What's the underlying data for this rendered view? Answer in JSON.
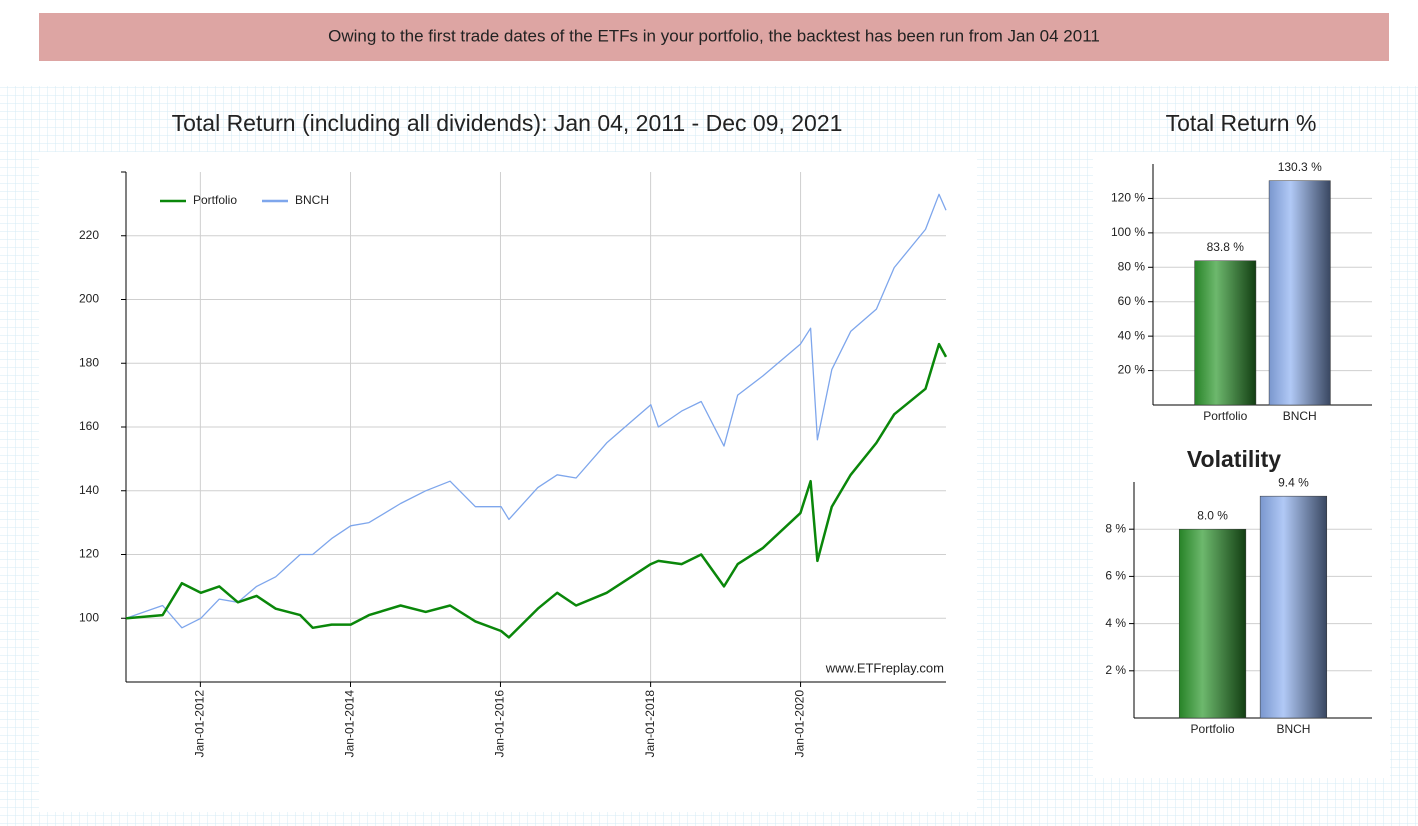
{
  "banner": "Owing to the first trade dates of the ETFs in your portfolio, the backtest has been run from Jan 04 2011",
  "chart_data": [
    {
      "type": "line",
      "title": "Total Return (including all dividends): Jan 04, 2011 - Dec 09, 2021",
      "annotation": "www.ETFreplay.com",
      "x": [
        "2011-01-04",
        "2011-07-01",
        "2011-10-03",
        "2012-01-03",
        "2012-04-02",
        "2012-07-02",
        "2012-10-01",
        "2013-01-02",
        "2013-05-01",
        "2013-07-01",
        "2013-10-01",
        "2014-01-02",
        "2014-04-01",
        "2014-09-02",
        "2015-01-02",
        "2015-05-01",
        "2015-09-01",
        "2016-01-04",
        "2016-02-11",
        "2016-07-01",
        "2016-10-03",
        "2017-01-03",
        "2017-06-01",
        "2018-01-02",
        "2018-02-08",
        "2018-06-01",
        "2018-09-04",
        "2018-12-24",
        "2019-03-01",
        "2019-07-01",
        "2019-12-31",
        "2020-02-19",
        "2020-03-23",
        "2020-06-01",
        "2020-09-01",
        "2021-01-04",
        "2021-04-01",
        "2021-08-31",
        "2021-11-05",
        "2021-12-09"
      ],
      "series": [
        {
          "name": "Portfolio",
          "color": "#0a870a",
          "values": [
            100,
            101,
            111,
            108,
            110,
            105,
            107,
            103,
            101,
            97,
            98,
            98,
            101,
            104,
            102,
            104,
            99,
            96,
            94,
            103,
            108,
            104,
            108,
            117,
            118,
            117,
            120,
            110,
            117,
            122,
            133,
            143,
            118,
            135,
            145,
            155,
            164,
            172,
            186,
            182
          ]
        },
        {
          "name": "BNCH",
          "color": "#7ea6ec",
          "values": [
            100,
            104,
            97,
            100,
            106,
            105,
            110,
            113,
            120,
            120,
            125,
            129,
            130,
            136,
            140,
            143,
            135,
            135,
            131,
            141,
            145,
            144,
            155,
            167,
            160,
            165,
            168,
            154,
            170,
            176,
            186,
            191,
            156,
            178,
            190,
            197,
            210,
            222,
            233,
            228
          ]
        }
      ],
      "xlim": [
        "2011-01-04",
        "2021-12-09"
      ],
      "xticks": [
        {
          "value": "2012-01-01",
          "label": "Jan-01-2012"
        },
        {
          "value": "2014-01-01",
          "label": "Jan-01-2014"
        },
        {
          "value": "2016-01-01",
          "label": "Jan-01-2016"
        },
        {
          "value": "2018-01-01",
          "label": "Jan-01-2018"
        },
        {
          "value": "2020-01-01",
          "label": "Jan-01-2020"
        }
      ],
      "ylim": [
        80,
        240
      ],
      "yticks": [
        100,
        120,
        140,
        160,
        180,
        200,
        220
      ],
      "grid": true,
      "legend": "top-left"
    },
    {
      "type": "bar",
      "title": "Total Return %",
      "categories": [
        "Portfolio",
        "BNCH"
      ],
      "values": [
        83.8,
        130.3
      ],
      "value_labels": [
        "83.8 %",
        "130.3 %"
      ],
      "colors": [
        "#2e9a2e",
        "#8fb2f2"
      ],
      "ylim": [
        0,
        140
      ],
      "yticks": [
        {
          "value": 20,
          "label": "20 %"
        },
        {
          "value": 40,
          "label": "40 %"
        },
        {
          "value": 60,
          "label": "60 %"
        },
        {
          "value": 80,
          "label": "80 %"
        },
        {
          "value": 100,
          "label": "100 %"
        },
        {
          "value": 120,
          "label": "120 %"
        }
      ],
      "grid": true
    },
    {
      "type": "bar",
      "title": "Volatility",
      "categories": [
        "Portfolio",
        "BNCH"
      ],
      "values": [
        8.0,
        9.4
      ],
      "value_labels": [
        "8.0 %",
        "9.4 %"
      ],
      "colors": [
        "#2e9a2e",
        "#8fb2f2"
      ],
      "ylim": [
        0,
        10
      ],
      "yticks": [
        {
          "value": 2,
          "label": "2 %"
        },
        {
          "value": 4,
          "label": "4 %"
        },
        {
          "value": 6,
          "label": "6 %"
        },
        {
          "value": 8,
          "label": "8 %"
        }
      ],
      "grid": true
    }
  ]
}
